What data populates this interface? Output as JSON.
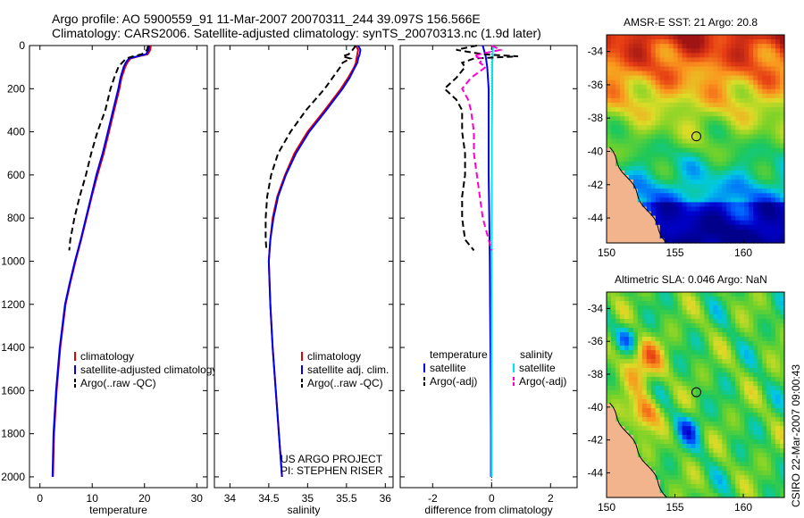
{
  "title": {
    "line1": "Argo profile: AO 5900559_91 11-Mar-2007 20070311_244 39.097S 156.566E",
    "line2": "Climatology: CARS2006. Satellite-adjusted climatology: synTS_20070313.nc (1.9d later)"
  },
  "chart_data": [
    {
      "type": "line",
      "id": "temperature",
      "xlabel": "temperature",
      "xlim": [
        -2,
        32
      ],
      "xticks": [
        0,
        10,
        20,
        30
      ],
      "ylim": [
        0,
        2050
      ],
      "yticks": [
        0,
        200,
        400,
        600,
        800,
        1000,
        1200,
        1400,
        1600,
        1800,
        2000
      ],
      "y_reversed": true,
      "legend": [
        "climatology",
        "satellite-adjusted climatology",
        "Argo(..raw -QC)"
      ],
      "series": [
        {
          "name": "climatology",
          "color": "#e00000",
          "dash": "",
          "y": [
            0,
            20,
            40,
            50,
            60,
            80,
            100,
            150,
            200,
            300,
            400,
            500,
            600,
            700,
            800,
            900,
            1000,
            1100,
            1200,
            1400,
            1600,
            1800,
            2000
          ],
          "x": [
            21.2,
            21.1,
            20.6,
            18.8,
            17.3,
            16.7,
            16.3,
            15.6,
            15.2,
            14.2,
            13.2,
            12.2,
            11.0,
            9.9,
            8.9,
            7.9,
            6.8,
            5.8,
            4.9,
            3.9,
            3.2,
            2.7,
            2.5
          ]
        },
        {
          "name": "satellite-adjusted climatology",
          "color": "#0000ee",
          "dash": "",
          "y": [
            0,
            20,
            40,
            50,
            60,
            80,
            100,
            150,
            200,
            300,
            400,
            500,
            600,
            700,
            800,
            900,
            1000,
            1100,
            1200,
            1400,
            1600,
            1800,
            2000
          ],
          "x": [
            20.9,
            20.8,
            20.3,
            18.6,
            17.0,
            16.4,
            16.0,
            15.4,
            15.0,
            14.0,
            13.0,
            12.0,
            10.8,
            9.8,
            8.8,
            7.8,
            6.7,
            5.7,
            4.8,
            3.8,
            3.1,
            2.6,
            2.4
          ]
        },
        {
          "name": "Argo(..raw -QC)",
          "color": "#000000",
          "dash": "7,4",
          "y": [
            0,
            20,
            40,
            50,
            60,
            80,
            100,
            150,
            200,
            300,
            400,
            500,
            600,
            700,
            800,
            900,
            950
          ],
          "x": [
            20.7,
            20.5,
            19.5,
            17.8,
            16.5,
            15.7,
            15.0,
            14.2,
            13.5,
            12.5,
            11.0,
            9.8,
            8.8,
            7.6,
            6.6,
            5.8,
            5.6
          ]
        }
      ]
    },
    {
      "type": "line",
      "id": "salinity",
      "xlabel": "salinity",
      "xlim": [
        33.8,
        36.1
      ],
      "xticks": [
        34,
        34.5,
        35,
        35.5,
        36
      ],
      "ylim": [
        0,
        2050
      ],
      "yticks": [
        0,
        200,
        400,
        600,
        800,
        1000,
        1200,
        1400,
        1600,
        1800,
        2000
      ],
      "y_reversed": true,
      "legend": [
        "climatology",
        "satellite adj. clim.",
        "Argo(..raw -QC)"
      ],
      "annotation": [
        "US ARGO PROJECT",
        "PI: STEPHEN RISER"
      ],
      "series": [
        {
          "name": "climatology",
          "color": "#e00000",
          "dash": "",
          "y": [
            0,
            20,
            40,
            60,
            80,
            100,
            150,
            200,
            300,
            400,
            500,
            600,
            700,
            800,
            900,
            1000,
            1200,
            1400,
            1600,
            1800,
            2000
          ],
          "x": [
            35.62,
            35.65,
            35.64,
            35.63,
            35.62,
            35.6,
            35.52,
            35.43,
            35.22,
            35.0,
            34.83,
            34.71,
            34.61,
            34.55,
            34.52,
            34.5,
            34.52,
            34.55,
            34.59,
            34.63,
            34.67
          ]
        },
        {
          "name": "satellite adj. clim.",
          "color": "#0000ee",
          "dash": "",
          "y": [
            0,
            20,
            40,
            60,
            80,
            100,
            150,
            200,
            300,
            400,
            500,
            600,
            700,
            800,
            900,
            1000,
            1200,
            1400,
            1600,
            1800,
            2000
          ],
          "x": [
            35.65,
            35.68,
            35.67,
            35.65,
            35.64,
            35.61,
            35.54,
            35.45,
            35.24,
            35.02,
            34.85,
            34.72,
            34.62,
            34.56,
            34.52,
            34.5,
            34.52,
            34.55,
            34.59,
            34.63,
            34.67
          ]
        },
        {
          "name": "Argo(..raw -QC)",
          "color": "#000000",
          "dash": "7,4",
          "y": [
            0,
            20,
            40,
            50,
            60,
            80,
            100,
            150,
            200,
            300,
            400,
            500,
            600,
            700,
            800,
            900,
            950
          ],
          "x": [
            35.62,
            35.58,
            35.53,
            35.45,
            35.55,
            35.45,
            35.42,
            35.32,
            35.22,
            34.98,
            34.78,
            34.62,
            34.53,
            34.48,
            34.46,
            34.46,
            34.47
          ]
        }
      ]
    },
    {
      "type": "line",
      "id": "difference",
      "xlabel": "difference from climatology",
      "xlim": [
        -3.1,
        2.9
      ],
      "xticks": [
        -2,
        0,
        2
      ],
      "ylim": [
        0,
        2050
      ],
      "yticks": [
        0,
        200,
        400,
        600,
        800,
        1000,
        1200,
        1400,
        1600,
        1800,
        2000
      ],
      "y_reversed": true,
      "legend_temperature": [
        "temperature",
        "satellite",
        "Argo(-adj)"
      ],
      "legend_salinity": [
        "salinity",
        "satellite",
        "Argo(-adj)"
      ],
      "series": [
        {
          "name": "temperature satellite",
          "color": "#0000ee",
          "dash": "",
          "y": [
            0,
            50,
            100,
            200,
            400,
            600,
            800,
            1000,
            1200,
            1400,
            1600,
            1800,
            2000
          ],
          "x": [
            -0.3,
            -0.2,
            -0.15,
            -0.1,
            -0.1,
            -0.1,
            -0.08,
            -0.06,
            -0.05,
            -0.04,
            -0.03,
            -0.02,
            -0.02
          ]
        },
        {
          "name": "salinity satellite",
          "color": "#00e5ee",
          "dash": "",
          "y": [
            0,
            50,
            100,
            200,
            400,
            600,
            800,
            1000,
            1200,
            1400,
            1600,
            1800,
            2000
          ],
          "x": [
            0.05,
            0.03,
            0.02,
            0.02,
            0.01,
            0.01,
            0.01,
            0.0,
            0.0,
            0.0,
            0.0,
            0.0,
            0.0
          ]
        },
        {
          "name": "temperature Argo(-adj)",
          "color": "#000000",
          "dash": "7,4",
          "y": [
            0,
            20,
            40,
            50,
            60,
            80,
            100,
            150,
            200,
            250,
            300,
            400,
            500,
            600,
            700,
            800,
            900,
            950
          ],
          "x": [
            -0.5,
            -1.2,
            -0.3,
            0.9,
            -0.6,
            -1.0,
            -0.9,
            -1.2,
            -1.6,
            -1.2,
            -1.0,
            -1.0,
            -0.9,
            -0.9,
            -1.0,
            -1.0,
            -0.9,
            -0.6
          ]
        },
        {
          "name": "salinity Argo(-adj)",
          "color": "#ff00cc",
          "dash": "7,4",
          "y": [
            0,
            20,
            40,
            50,
            60,
            80,
            100,
            150,
            200,
            250,
            300,
            400,
            500,
            600,
            700,
            800,
            900,
            950
          ],
          "x": [
            0.0,
            0.3,
            -0.4,
            -0.6,
            -0.3,
            -0.4,
            -0.2,
            -0.7,
            -1.0,
            -0.8,
            -0.7,
            -0.6,
            -0.6,
            -0.5,
            -0.4,
            -0.3,
            -0.1,
            0.0
          ]
        }
      ]
    },
    {
      "type": "heatmap",
      "id": "sst_map",
      "title": "AMSR-E SST: 21 Argo: 20.8",
      "xlim": [
        150,
        163
      ],
      "ylim": [
        -45.5,
        -33
      ],
      "xticks": [
        150,
        155,
        160
      ],
      "yticks": [
        -34,
        -36,
        -38,
        -40,
        -42,
        -44
      ],
      "marker": {
        "lon": 156.566,
        "lat": -39.097
      }
    },
    {
      "type": "heatmap",
      "id": "sla_map",
      "title": "Altimetric SLA: 0.046 Argo: NaN",
      "xlim": [
        150,
        163
      ],
      "ylim": [
        -45.5,
        -33
      ],
      "xticks": [
        150,
        155,
        160
      ],
      "yticks": [
        -34,
        -36,
        -38,
        -40,
        -42,
        -44
      ],
      "marker": {
        "lon": 156.566,
        "lat": -39.097
      }
    }
  ],
  "footer_stamp": "CSIRO 22-Mar-2007 09:00:43"
}
